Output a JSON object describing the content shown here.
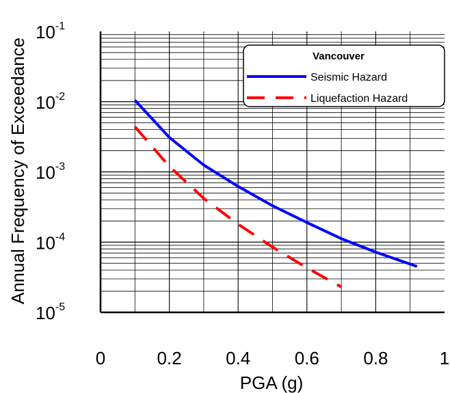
{
  "chart_data": {
    "type": "line",
    "title": "",
    "xlabel": "PGA (g)",
    "ylabel": "Annual Frequency of Exceedance",
    "xlim": [
      0,
      1
    ],
    "ylim": [
      1e-05,
      0.1
    ],
    "y_scale": "log",
    "grid": true,
    "x_ticks": [
      "0",
      "0.2",
      "0.4",
      "0.6",
      "0.8",
      "1"
    ],
    "x_tick_values": [
      0,
      0.2,
      0.4,
      0.6,
      0.8,
      1
    ],
    "y_ticks": [
      {
        "base": "10",
        "exp": "-5",
        "value": 1e-05
      },
      {
        "base": "10",
        "exp": "-4",
        "value": 0.0001
      },
      {
        "base": "10",
        "exp": "-3",
        "value": 0.001
      },
      {
        "base": "10",
        "exp": "-2",
        "value": 0.01
      },
      {
        "base": "10",
        "exp": "-1",
        "value": 0.1
      }
    ],
    "legend": {
      "title": "Vancouver",
      "position": "top-right"
    },
    "series": [
      {
        "name": "Seismic Hazard",
        "color": "#0000ff",
        "style": "solid",
        "x": [
          0.1,
          0.2,
          0.3,
          0.4,
          0.5,
          0.6,
          0.7,
          0.8,
          0.92
        ],
        "y": [
          0.0105,
          0.0031,
          0.00125,
          0.00062,
          0.00033,
          0.00019,
          0.000112,
          7.2e-05,
          4.5e-05
        ]
      },
      {
        "name": "Liquefaction Hazard",
        "color": "#ff0000",
        "style": "dashed",
        "x": [
          0.1,
          0.2,
          0.3,
          0.4,
          0.5,
          0.6,
          0.7
        ],
        "y": [
          0.0044,
          0.0012,
          0.00042,
          0.00018,
          8.5e-05,
          4.3e-05,
          2.3e-05
        ]
      }
    ]
  }
}
